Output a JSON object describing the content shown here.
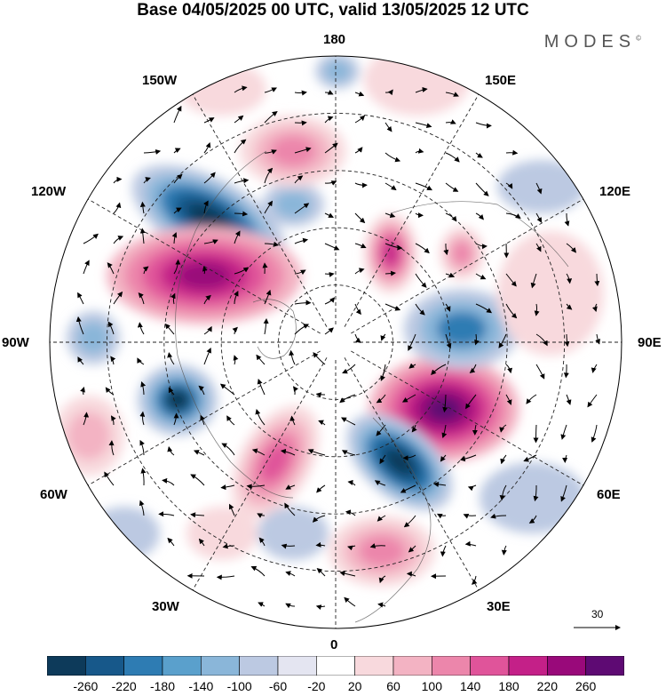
{
  "title": "Base 04/05/2025 00 UTC, valid 13/05/2025 12 UTC",
  "brand": "MODES",
  "brand_mark": "©",
  "map_labels": {
    "lon_180": "180",
    "lon_150W": "150W",
    "lon_150E": "150E",
    "lon_120W": "120W",
    "lon_120E": "120E",
    "lon_90W": "90W",
    "lon_90E": "90E",
    "lon_60W": "60W",
    "lon_60E": "60E",
    "lon_30W": "30W",
    "lon_30E": "30E",
    "lon_0": "0"
  },
  "reference_vector": "30",
  "colorbar": {
    "colors": [
      "#0d3a5a",
      "#17588a",
      "#2e7cb3",
      "#5aa0cc",
      "#8ab6d9",
      "#bcc9e2",
      "#e4e5f1",
      "#ffffff",
      "#f8d9dd",
      "#f3b3c3",
      "#ec86ab",
      "#e0549a",
      "#c42088",
      "#99097a",
      "#5e0a73"
    ],
    "ticks": [
      "-260",
      "-220",
      "-180",
      "-140",
      "-100",
      "-60",
      "-20",
      "20",
      "60",
      "100",
      "140",
      "180",
      "220",
      "260"
    ]
  }
}
